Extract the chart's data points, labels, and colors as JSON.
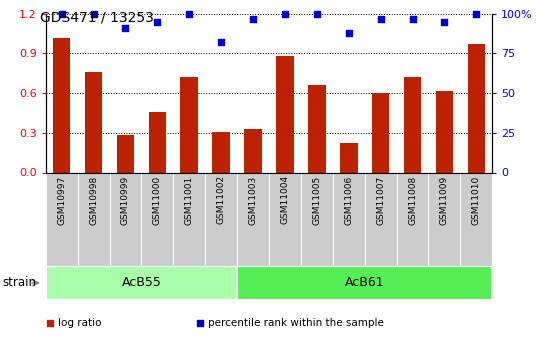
{
  "title": "GDS471 / 13253",
  "samples": [
    "GSM10997",
    "GSM10998",
    "GSM10999",
    "GSM11000",
    "GSM11001",
    "GSM11002",
    "GSM11003",
    "GSM11004",
    "GSM11005",
    "GSM11006",
    "GSM11007",
    "GSM11008",
    "GSM11009",
    "GSM11010"
  ],
  "log_ratio": [
    1.02,
    0.76,
    0.28,
    0.46,
    0.72,
    0.31,
    0.33,
    0.88,
    0.66,
    0.22,
    0.6,
    0.72,
    0.62,
    0.97
  ],
  "percentile": [
    100,
    100,
    91,
    95,
    100,
    82,
    97,
    100,
    100,
    88,
    97,
    97,
    95,
    100
  ],
  "bar_color": "#bb2200",
  "dot_color": "#0000cc",
  "groups": [
    {
      "label": "AcB55",
      "start": 0,
      "end": 6,
      "color": "#aaffaa"
    },
    {
      "label": "AcB61",
      "start": 6,
      "end": 14,
      "color": "#55ee55"
    }
  ],
  "group_label": "strain",
  "ylim_left": [
    0,
    1.2
  ],
  "ylim_right": [
    0,
    100
  ],
  "yticks_left": [
    0,
    0.3,
    0.6,
    0.9,
    1.2
  ],
  "yticks_right": [
    0,
    25,
    50,
    75,
    100
  ],
  "ytick_labels_right": [
    "0",
    "25",
    "50",
    "75",
    "100%"
  ],
  "legend_items": [
    {
      "label": "log ratio",
      "color": "#bb2200"
    },
    {
      "label": "percentile rank within the sample",
      "color": "#0000cc"
    }
  ]
}
